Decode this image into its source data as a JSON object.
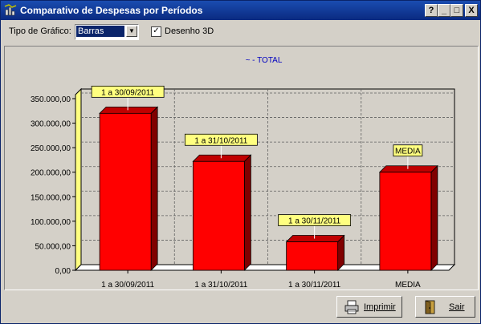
{
  "window": {
    "title": "Comparativo de Despesas por Períodos",
    "controls": [
      "?",
      "_",
      "□",
      "X"
    ]
  },
  "toolbar": {
    "chart_type_label": "Tipo de Gráfico:",
    "chart_type_value": "Barras",
    "draw3d_label": "Desenho 3D",
    "draw3d_checked": true
  },
  "chart_data": {
    "type": "bar",
    "title": "~ - TOTAL",
    "categories": [
      "1 a 30/09/2011",
      "1 a 31/10/2011",
      "1 a 30/11/2011",
      "MEDIA"
    ],
    "values": [
      320000,
      222000,
      58000,
      200000
    ],
    "bar_labels": [
      "1 a 30/09/2011",
      "1 a 31/10/2011",
      "1 a 30/11/2011",
      "MEDIA"
    ],
    "yticks": [
      "0,00",
      "50.000,00",
      "100.000,00",
      "150.000,00",
      "200.000,00",
      "250.000,00",
      "300.000,00",
      "350.000,00"
    ],
    "ylim": [
      0,
      350000
    ],
    "grid": true,
    "bar_color": "#ff0000",
    "label_bg": "#ffff80"
  },
  "buttons": {
    "print_label": "Imprimir",
    "exit_label": "Sair"
  }
}
